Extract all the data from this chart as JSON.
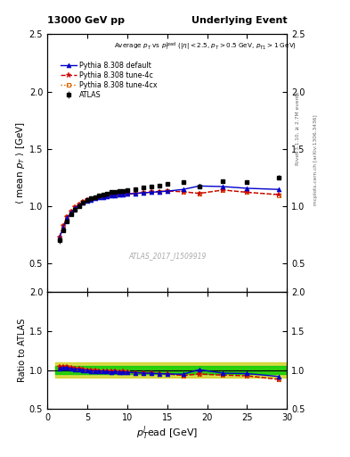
{
  "title_left": "13000 GeV pp",
  "title_right": "Underlying Event",
  "watermark": "ATLAS_2017_I1509919",
  "right_label_top": "Rivet 3.1.10, ≥ 2.7M events",
  "right_label_bottom": "mcplots.cern.ch [arXiv:1306.3436]",
  "ylim_main": [
    0.25,
    2.5
  ],
  "ylim_ratio": [
    0.5,
    2.0
  ],
  "xlim": [
    1,
    30
  ],
  "data_x": [
    1.5,
    2.0,
    2.5,
    3.0,
    3.5,
    4.0,
    4.5,
    5.0,
    5.5,
    6.0,
    6.5,
    7.0,
    7.5,
    8.0,
    8.5,
    9.0,
    9.5,
    10.0,
    11.0,
    12.0,
    13.0,
    14.0,
    15.0,
    17.0,
    19.0,
    22.0,
    25.0,
    29.0
  ],
  "data_y": [
    0.7,
    0.79,
    0.87,
    0.93,
    0.97,
    1.0,
    1.03,
    1.05,
    1.07,
    1.08,
    1.09,
    1.1,
    1.11,
    1.12,
    1.12,
    1.13,
    1.13,
    1.14,
    1.15,
    1.16,
    1.17,
    1.18,
    1.19,
    1.21,
    1.17,
    1.22,
    1.21,
    1.25
  ],
  "data_yerr": [
    0.025,
    0.02,
    0.015,
    0.012,
    0.01,
    0.01,
    0.008,
    0.008,
    0.008,
    0.007,
    0.007,
    0.007,
    0.007,
    0.007,
    0.007,
    0.007,
    0.007,
    0.007,
    0.007,
    0.007,
    0.008,
    0.008,
    0.009,
    0.01,
    0.015,
    0.015,
    0.015,
    0.02
  ],
  "pythia_default_x": [
    1.5,
    2.0,
    2.5,
    3.0,
    3.5,
    4.0,
    4.5,
    5.0,
    5.5,
    6.0,
    6.5,
    7.0,
    7.5,
    8.0,
    8.5,
    9.0,
    9.5,
    10.0,
    11.0,
    12.0,
    13.0,
    14.0,
    15.0,
    17.0,
    19.0,
    22.0,
    25.0,
    29.0
  ],
  "pythia_default_y": [
    0.715,
    0.815,
    0.895,
    0.945,
    0.98,
    1.01,
    1.03,
    1.045,
    1.055,
    1.065,
    1.075,
    1.08,
    1.085,
    1.09,
    1.095,
    1.1,
    1.1,
    1.105,
    1.11,
    1.115,
    1.12,
    1.125,
    1.13,
    1.145,
    1.175,
    1.17,
    1.155,
    1.145
  ],
  "pythia_4c_x": [
    1.5,
    2.0,
    2.5,
    3.0,
    3.5,
    4.0,
    4.5,
    5.0,
    5.5,
    6.0,
    6.5,
    7.0,
    7.5,
    8.0,
    8.5,
    9.0,
    9.5,
    10.0,
    11.0,
    12.0,
    13.0,
    14.0,
    15.0,
    17.0,
    19.0,
    22.0,
    25.0,
    29.0
  ],
  "pythia_4c_y": [
    0.725,
    0.825,
    0.905,
    0.955,
    0.99,
    1.015,
    1.035,
    1.05,
    1.06,
    1.07,
    1.075,
    1.085,
    1.09,
    1.095,
    1.1,
    1.1,
    1.105,
    1.105,
    1.11,
    1.115,
    1.12,
    1.125,
    1.13,
    1.125,
    1.11,
    1.14,
    1.12,
    1.1
  ],
  "pythia_4cx_x": [
    1.5,
    2.0,
    2.5,
    3.0,
    3.5,
    4.0,
    4.5,
    5.0,
    5.5,
    6.0,
    6.5,
    7.0,
    7.5,
    8.0,
    8.5,
    9.0,
    9.5,
    10.0,
    11.0,
    12.0,
    13.0,
    14.0,
    15.0,
    17.0,
    19.0,
    22.0,
    25.0,
    29.0
  ],
  "pythia_4cx_y": [
    0.725,
    0.825,
    0.905,
    0.955,
    0.99,
    1.015,
    1.035,
    1.05,
    1.06,
    1.07,
    1.075,
    1.085,
    1.09,
    1.095,
    1.1,
    1.1,
    1.105,
    1.105,
    1.11,
    1.115,
    1.12,
    1.125,
    1.135,
    1.125,
    1.11,
    1.14,
    1.12,
    1.095
  ],
  "color_data": "#000000",
  "color_default": "#0000cc",
  "color_4c": "#cc0000",
  "color_4cx": "#dd6600",
  "color_ratio_band_green": "#00cc00",
  "color_ratio_band_yellow": "#cccc00",
  "xticks": [
    0,
    5,
    10,
    15,
    20,
    25,
    30
  ],
  "yticks_main": [
    0.5,
    1.0,
    1.5,
    2.0,
    2.5
  ],
  "yticks_ratio": [
    0.5,
    1.0,
    1.5,
    2.0
  ]
}
